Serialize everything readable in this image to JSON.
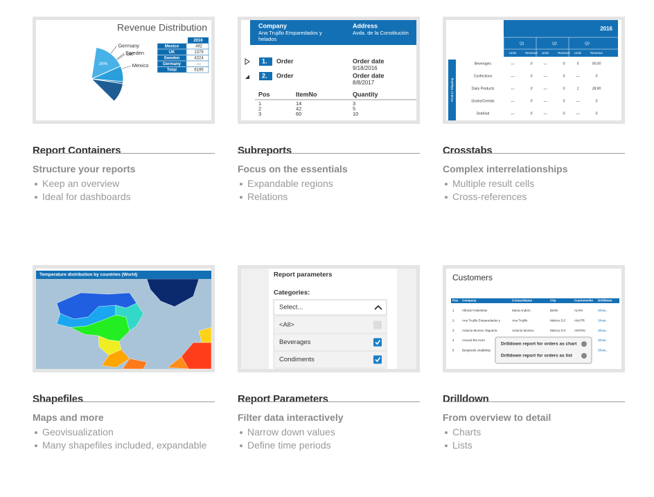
{
  "cards": [
    {
      "title": "Report Containers",
      "subtitle": "Structure your reports",
      "bullets": [
        "Keep an overview",
        "Ideal for dashboards"
      ],
      "thumbnail": {
        "title": "Revenue Distribution",
        "slices": [
          {
            "name": "Mexico",
            "value": 35,
            "label": "35%",
            "color": "#1d5d94"
          },
          {
            "name": "UK",
            "value": 25,
            "label": "25%",
            "color": "#1670b0"
          },
          {
            "name": "Sweden",
            "value": 24,
            "label": "24%",
            "color": "#2a9fdc"
          },
          {
            "name": "Germany",
            "value": 16,
            "label": "16%",
            "color": "#48b2e8"
          }
        ],
        "table": {
          "header": "2016",
          "rows": [
            [
              "Mexico",
              "492"
            ],
            [
              "UK",
              "1379"
            ],
            [
              "Sweden",
              "4324"
            ],
            [
              "Germany",
              "---"
            ],
            [
              "Total",
              "6195"
            ]
          ]
        }
      }
    },
    {
      "title": "Subreports",
      "subtitle": "Focus on the essentials",
      "bullets": [
        "Expandable regions",
        "Relations"
      ],
      "thumbnail": {
        "company_label": "Company",
        "company": [
          "Ana Trujillo Emparedados y",
          "helados"
        ],
        "address_label": "Address",
        "address": "Avda. de la Constitución",
        "orders": [
          {
            "pos": "1.",
            "label": "Order",
            "date_label": "Order date",
            "date": "9/18/2016"
          },
          {
            "pos": "2.",
            "label": "Order",
            "date_label": "Order date",
            "date": "8/8/2017"
          }
        ],
        "table": {
          "header": [
            "Pos",
            "ItemNo",
            "Quantity"
          ],
          "rows": [
            [
              "1",
              "14",
              "3"
            ],
            [
              "2",
              "42",
              "5"
            ],
            [
              "3",
              "60",
              "10"
            ]
          ]
        }
      }
    },
    {
      "title": "Crosstabs",
      "subtitle": "Complex interrelationships",
      "bullets": [
        "Multiple result cells",
        "Cross-references"
      ],
      "thumbnail": {
        "year": "2016",
        "quarters": [
          "Q1",
          "Q2",
          "Q3"
        ],
        "measures": [
          "Units",
          "Revenue",
          "Units",
          "Revenue",
          "Units",
          "Revenue"
        ],
        "side_label": "Product Shipping",
        "rows": [
          {
            "label": "Beverages",
            "cells": [
              "---",
              "0",
              "---",
              "0",
              "5",
              "00.00"
            ]
          },
          {
            "label": "Confections",
            "cells": [
              "---",
              "0",
              "---",
              "0",
              "---",
              "0"
            ]
          },
          {
            "label": "Dairy Products",
            "cells": [
              "---",
              "0",
              "---",
              "0",
              "1",
              "28.80"
            ]
          },
          {
            "label": "Grains/Cereals",
            "cells": [
              "---",
              "0",
              "---",
              "0",
              "---",
              "0"
            ]
          },
          {
            "label": "Seafood",
            "cells": [
              "---",
              "0",
              "---",
              "0",
              "---",
              "0"
            ]
          }
        ]
      }
    },
    {
      "title": "Shapefiles",
      "subtitle": "Maps and more",
      "bullets": [
        "Geovisualization",
        "Many shapefiles included, expandable"
      ],
      "thumbnail": {
        "title": "Temperature distribution by countries (World)"
      }
    },
    {
      "title": "Report Parameters",
      "subtitle": "Filter data interactively",
      "bullets": [
        "Narrow down values",
        "Define time periods"
      ],
      "thumbnail": {
        "title": "Report parameters",
        "label": "Categories:",
        "select": "Select...",
        "options": [
          "<All>",
          "Beverages",
          "Condiments"
        ]
      }
    },
    {
      "title": "Drilldown",
      "subtitle": "From overview to detail",
      "bullets": [
        "Charts",
        "Lists"
      ],
      "thumbnail": {
        "title": "Customers",
        "header": [
          "Pos",
          "Company",
          "ContactName",
          "City",
          "CustomerNo",
          "Drilldown"
        ],
        "rows": [
          {
            "cells": [
              "1",
              "Alfreds Futterkiste",
              "Maria Anders",
              "Berlin",
              "ALFKI"
            ],
            "link": "Show..."
          },
          {
            "cells": [
              "2",
              "Ana Trujillo Emparedados y",
              "Ana Trujillo",
              "México D.F.",
              "ANATR"
            ],
            "link": "Show..."
          },
          {
            "cells": [
              "3",
              "Antonio Moreno Taquería",
              "Antonio Moreno",
              "México D.F.",
              "ANTON"
            ],
            "link": "Show..."
          },
          {
            "cells": [
              "4",
              "Around the Horn"
            ],
            "link": "Show..."
          },
          {
            "cells": [
              "5",
              "Berglunds snabbköp"
            ],
            "link": "Show..."
          }
        ],
        "menu": [
          "Drilldown report for orders as chart",
          "Drilldown report for orders as list"
        ]
      }
    }
  ]
}
